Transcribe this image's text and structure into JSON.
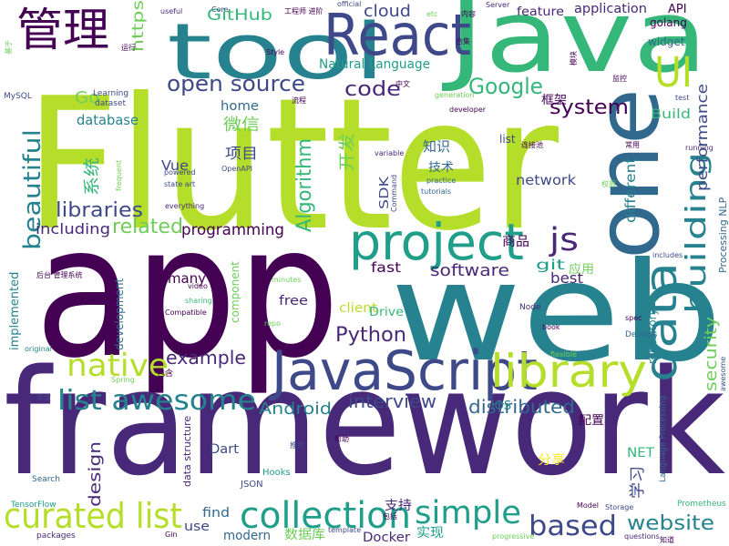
{
  "chart_data": {
    "type": "wordcloud",
    "words": [
      {
        "text": "Flutter",
        "weight": 200,
        "color": "#b5de2b"
      },
      {
        "text": "app",
        "weight": 200,
        "color": "#440154"
      },
      {
        "text": "web",
        "weight": 150,
        "color": "#26828e"
      },
      {
        "text": "framework",
        "weight": 160,
        "color": "#482878"
      },
      {
        "text": "JavaScript",
        "weight": 60,
        "color": "#3e4989"
      },
      {
        "text": "Java",
        "weight": 110,
        "color": "#35b779"
      },
      {
        "text": "tool",
        "weight": 85,
        "color": "#26828e"
      },
      {
        "text": "React",
        "weight": 62,
        "color": "#3e4989"
      },
      {
        "text": "one",
        "weight": 95,
        "color": "#31688e"
      },
      {
        "text": "UI",
        "weight": 45,
        "color": "#b5de2b"
      },
      {
        "text": "管理",
        "weight": 50,
        "color": "#440154"
      },
      {
        "text": "project",
        "weight": 55,
        "color": "#1f9e89"
      },
      {
        "text": "library",
        "weight": 50,
        "color": "#b5de2b"
      },
      {
        "text": "data",
        "weight": 48,
        "color": "#26828e"
      },
      {
        "text": "curated list",
        "weight": 38,
        "color": "#b5de2b"
      },
      {
        "text": "collection",
        "weight": 40,
        "color": "#1f9e89"
      },
      {
        "text": "list awesome",
        "weight": 30,
        "color": "#26828e"
      },
      {
        "text": "native",
        "weight": 34,
        "color": "#b5de2b"
      },
      {
        "text": "simple",
        "weight": 35,
        "color": "#1f9e89"
      },
      {
        "text": "based",
        "weight": 30,
        "color": "#3e4989"
      },
      {
        "text": "website",
        "weight": 22,
        "color": "#26828e"
      },
      {
        "text": "building",
        "weight": 30,
        "color": "#26828e"
      },
      {
        "text": "beautiful",
        "weight": 26,
        "color": "#26828e"
      },
      {
        "text": "js",
        "weight": 35,
        "color": "#482878"
      },
      {
        "text": "open source",
        "weight": 24,
        "color": "#3e4989"
      },
      {
        "text": "system",
        "weight": 22,
        "color": "#440154"
      },
      {
        "text": "Google",
        "weight": 24,
        "color": "#35b779"
      },
      {
        "text": "code",
        "weight": 22,
        "color": "#482878"
      },
      {
        "text": "related",
        "weight": 22,
        "color": "#6ece58"
      },
      {
        "text": "libraries",
        "weight": 22,
        "color": "#3e4989"
      },
      {
        "text": "Algorithm",
        "weight": 22,
        "color": "#35b779"
      },
      {
        "text": "Python",
        "weight": 22,
        "color": "#482878"
      },
      {
        "text": "example",
        "weight": 20,
        "color": "#482878"
      },
      {
        "text": "interview",
        "weight": 20,
        "color": "#3e4989"
      },
      {
        "text": "distributed",
        "weight": 20,
        "color": "#31688e"
      },
      {
        "text": "Android",
        "weight": 18,
        "color": "#26828e"
      },
      {
        "text": "software",
        "weight": 18,
        "color": "#482878"
      },
      {
        "text": "programming",
        "weight": 17,
        "color": "#440154"
      },
      {
        "text": "including",
        "weight": 16,
        "color": "#482878"
      },
      {
        "text": "security",
        "weight": 18,
        "color": "#6ece58"
      },
      {
        "text": "performance",
        "weight": 16,
        "color": "#3e4989"
      },
      {
        "text": "design",
        "weight": 18,
        "color": "#482878"
      },
      {
        "text": "Go",
        "weight": 18,
        "color": "#6ece58"
      },
      {
        "text": "GitHub",
        "weight": 17,
        "color": "#35b779"
      },
      {
        "text": "cloud",
        "weight": 18,
        "color": "#3e4989"
      },
      {
        "text": "https",
        "weight": 17,
        "color": "#6ece58"
      },
      {
        "text": "database",
        "weight": 15,
        "color": "#26828e"
      },
      {
        "text": "Natural Language",
        "weight": 14,
        "color": "#1f9e89"
      },
      {
        "text": "微信",
        "weight": 18,
        "color": "#6ece58"
      },
      {
        "text": "home",
        "weight": 14,
        "color": "#31688e"
      },
      {
        "text": "项目",
        "weight": 16,
        "color": "#3e4989"
      },
      {
        "text": "Vue",
        "weight": 15,
        "color": "#3e4989"
      },
      {
        "text": "系统",
        "weight": 18,
        "color": "#35b779"
      },
      {
        "text": "开发",
        "weight": 18,
        "color": "#6ece58"
      },
      {
        "text": "知识",
        "weight": 15,
        "color": "#31688e"
      },
      {
        "text": "技术",
        "weight": 13,
        "color": "#31688e"
      },
      {
        "text": "SDK",
        "weight": 13,
        "color": "#3e4989"
      },
      {
        "text": "network",
        "weight": 15,
        "color": "#3e4989"
      },
      {
        "text": "different",
        "weight": 15,
        "color": "#26828e"
      },
      {
        "text": "best",
        "weight": 16,
        "color": "#482878"
      },
      {
        "text": "git",
        "weight": 15,
        "color": "#1f9e89"
      },
      {
        "text": "fast",
        "weight": 15,
        "color": "#440154"
      },
      {
        "text": "many",
        "weight": 15,
        "color": "#440154"
      },
      {
        "text": "free",
        "weight": 14,
        "color": "#482878"
      },
      {
        "text": "client",
        "weight": 14,
        "color": "#b5de2b"
      },
      {
        "text": "Drive",
        "weight": 13,
        "color": "#35b779"
      },
      {
        "text": "Node",
        "weight": 9,
        "color": "#482878"
      },
      {
        "text": "iOS",
        "weight": 13,
        "color": "#26828e"
      },
      {
        "text": "Dart",
        "weight": 14,
        "color": "#3e4989"
      },
      {
        "text": "NET",
        "weight": 14,
        "color": "#35b779"
      },
      {
        "text": "学习",
        "weight": 17,
        "color": "#3e4989"
      },
      {
        "text": "find",
        "weight": 14,
        "color": "#31688e"
      },
      {
        "text": "use",
        "weight": 14,
        "color": "#3e4989"
      },
      {
        "text": "modern",
        "weight": 14,
        "color": "#31688e"
      },
      {
        "text": "Docker",
        "weight": 14,
        "color": "#482878"
      },
      {
        "text": "数据库",
        "weight": 14,
        "color": "#6ece58"
      },
      {
        "text": "实现",
        "weight": 14,
        "color": "#1f9e89"
      },
      {
        "text": "支持",
        "weight": 14,
        "color": "#482878"
      },
      {
        "text": "商品",
        "weight": 14,
        "color": "#440154"
      },
      {
        "text": "应用",
        "weight": 13,
        "color": "#6ece58"
      },
      {
        "text": "分享",
        "weight": 14,
        "color": "#fde725"
      },
      {
        "text": "配置",
        "weight": 13,
        "color": "#440154"
      },
      {
        "text": "Build",
        "weight": 14,
        "color": "#35b779"
      },
      {
        "text": "API",
        "weight": 13,
        "color": "#440154"
      },
      {
        "text": "golang",
        "weight": 12,
        "color": "#440154"
      },
      {
        "text": "widget",
        "weight": 12,
        "color": "#31688e"
      },
      {
        "text": "feature",
        "weight": 13,
        "color": "#482878"
      },
      {
        "text": "application",
        "weight": 14,
        "color": "#482878"
      },
      {
        "text": "框架",
        "weight": 13,
        "color": "#440154"
      },
      {
        "text": "list",
        "weight": 12,
        "color": "#3e4989"
      },
      {
        "text": "component",
        "weight": 12,
        "color": "#6ece58"
      },
      {
        "text": "development",
        "weight": 12,
        "color": "#31688e"
      },
      {
        "text": "implemented",
        "weight": 13,
        "color": "#26828e"
      },
      {
        "text": "repository",
        "weight": 12,
        "color": "#26828e"
      },
      {
        "text": "Processing NLP",
        "weight": 11,
        "color": "#31688e"
      },
      {
        "text": "data structure",
        "weight": 11,
        "color": "#482878"
      },
      {
        "text": "Hooks",
        "weight": 10,
        "color": "#1f9e89"
      },
      {
        "text": "JSON",
        "weight": 10,
        "color": "#3e4989"
      },
      {
        "text": "TensorFlow",
        "weight": 9,
        "color": "#1f9e89"
      },
      {
        "text": "Search",
        "weight": 9,
        "color": "#31688e"
      },
      {
        "text": "MySQL",
        "weight": 9,
        "color": "#3e4989"
      },
      {
        "text": "Learning",
        "weight": 9,
        "color": "#3e4989"
      },
      {
        "text": "dataset",
        "weight": 9,
        "color": "#3e4989"
      },
      {
        "text": "useful",
        "weight": 8,
        "color": "#482878"
      },
      {
        "text": "Core",
        "weight": 8,
        "color": "#3e4989"
      },
      {
        "text": "official",
        "weight": 8,
        "color": "#3e4989"
      },
      {
        "text": "Server",
        "weight": 8,
        "color": "#482878"
      },
      {
        "text": "etc",
        "weight": 8,
        "color": "#6ece58"
      },
      {
        "text": "Style",
        "weight": 8,
        "color": "#440154"
      },
      {
        "text": "Prometheus",
        "weight": 9,
        "color": "#35b779"
      },
      {
        "text": "Model",
        "weight": 8,
        "color": "#440154"
      },
      {
        "text": "Storage",
        "weight": 8,
        "color": "#3e4989"
      },
      {
        "text": "questions",
        "weight": 8,
        "color": "#482878"
      },
      {
        "text": "progressive",
        "weight": 8,
        "color": "#6ece58"
      },
      {
        "text": "template",
        "weight": 8,
        "color": "#3e4989"
      },
      {
        "text": "Gin",
        "weight": 8,
        "color": "#440154"
      },
      {
        "text": "packages",
        "weight": 9,
        "color": "#482878"
      },
      {
        "text": "Language Processing",
        "weight": 9,
        "color": "#31688e"
      },
      {
        "text": "DevOps",
        "weight": 9,
        "color": "#31688e"
      },
      {
        "text": "spec",
        "weight": 8,
        "color": "#440154"
      },
      {
        "text": "book",
        "weight": 8,
        "color": "#440154"
      },
      {
        "text": "flexible",
        "weight": 8,
        "color": "#6ece58"
      },
      {
        "text": "Compatible",
        "weight": 8,
        "color": "#440154"
      },
      {
        "text": "video",
        "weight": 8,
        "color": "#440154"
      },
      {
        "text": "sharing",
        "weight": 8,
        "color": "#35b779"
      },
      {
        "text": "minutes",
        "weight": 8,
        "color": "#6ece58"
      },
      {
        "text": "everything",
        "weight": 8,
        "color": "#482878"
      },
      {
        "text": "state art",
        "weight": 8,
        "color": "#3e4989"
      },
      {
        "text": "powered",
        "weight": 8,
        "color": "#3e4989"
      },
      {
        "text": "OpenAPI",
        "weight": 8,
        "color": "#3e4989"
      },
      {
        "text": "frequent",
        "weight": 8,
        "color": "#6ece58"
      },
      {
        "text": "practice",
        "weight": 8,
        "color": "#31688e"
      },
      {
        "text": "tutorials",
        "weight": 8,
        "color": "#31688e"
      },
      {
        "text": "Command",
        "weight": 8,
        "color": "#3e4989"
      },
      {
        "text": "generation",
        "weight": 8,
        "color": "#6ece58"
      },
      {
        "text": "developer",
        "weight": 8,
        "color": "#440154"
      },
      {
        "text": "variable",
        "weight": 8,
        "color": "#482878"
      },
      {
        "text": "test",
        "weight": 8,
        "color": "#3e4989"
      },
      {
        "text": "running",
        "weight": 8,
        "color": "#482878"
      },
      {
        "text": "includes",
        "weight": 8,
        "color": "#3e4989"
      },
      {
        "text": "repo",
        "weight": 8,
        "color": "#6ece58"
      },
      {
        "text": "Spring",
        "weight": 8,
        "color": "#6ece58"
      },
      {
        "text": "awesome",
        "weight": 8,
        "color": "#3e4989"
      },
      {
        "text": "original",
        "weight": 8,
        "color": "#26828e"
      },
      {
        "text": "包含",
        "weight": 9,
        "color": "#440154"
      },
      {
        "text": "深度",
        "weight": 8,
        "color": "#3e4989"
      },
      {
        "text": "推荐",
        "weight": 8,
        "color": "#3e4989"
      },
      {
        "text": "包括",
        "weight": 8,
        "color": "#440154"
      },
      {
        "text": "帮助",
        "weight": 8,
        "color": "#440154"
      },
      {
        "text": "订单",
        "weight": 8,
        "color": "#440154"
      },
      {
        "text": "后台 管理系统",
        "weight": 8,
        "color": "#440154"
      },
      {
        "text": "知道",
        "weight": 8,
        "color": "#440154"
      },
      {
        "text": "工程师 进阶",
        "weight": 8,
        "color": "#440154"
      },
      {
        "text": "内容",
        "weight": 8,
        "color": "#440154"
      },
      {
        "text": "连接池",
        "weight": 8,
        "color": "#440154"
      },
      {
        "text": "中文",
        "weight": 8,
        "color": "#440154"
      },
      {
        "text": "合集",
        "weight": 8,
        "color": "#440154"
      },
      {
        "text": "流程",
        "weight": 8,
        "color": "#440154"
      },
      {
        "text": "运行",
        "weight": 8,
        "color": "#440154"
      },
      {
        "text": "常用",
        "weight": 8,
        "color": "#440154"
      },
      {
        "text": "权限",
        "weight": 8,
        "color": "#6ece58"
      },
      {
        "text": "模块",
        "weight": 8,
        "color": "#440154"
      },
      {
        "text": "监控",
        "weight": 8,
        "color": "#440154"
      },
      {
        "text": "基于",
        "weight": 8,
        "color": "#6ece58"
      }
    ]
  }
}
